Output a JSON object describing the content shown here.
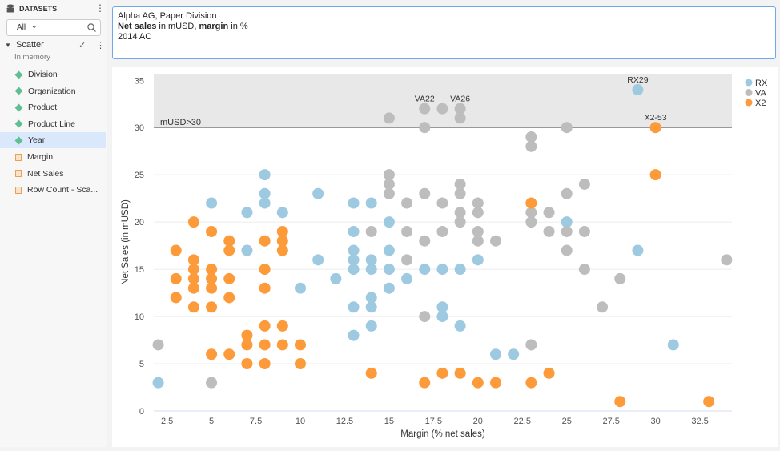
{
  "sidebar": {
    "title": "DATASETS",
    "filter_value": "All",
    "dataset": {
      "name": "Scatter",
      "subtitle": "In memory"
    },
    "fields": [
      {
        "label": "Division",
        "kind": "dimension"
      },
      {
        "label": "Organization",
        "kind": "dimension"
      },
      {
        "label": "Product",
        "kind": "dimension"
      },
      {
        "label": "Product Line",
        "kind": "dimension"
      },
      {
        "label": "Year",
        "kind": "dimension",
        "selected": true
      },
      {
        "label": "Margin",
        "kind": "measure"
      },
      {
        "label": "Net Sales",
        "kind": "measure"
      },
      {
        "label": "Row Count - Sca...",
        "kind": "measure"
      }
    ]
  },
  "header": {
    "line1": "Alpha AG, Paper Division",
    "line2_bold1": "Net sales",
    "line2_text1": " in mUSD, ",
    "line2_bold2": "margin",
    "line2_text2": " in %",
    "line3": "2014 AC"
  },
  "chart_data": {
    "type": "scatter",
    "xlabel": "Margin (% net sales)",
    "ylabel": "Net Sales (in mUSD)",
    "xlim": [
      1.75,
      34.3
    ],
    "ylim": [
      0,
      35.7
    ],
    "xticks": [
      "2.5",
      "5",
      "7.5",
      "10",
      "12.5",
      "15",
      "17.5",
      "20",
      "22.5",
      "25",
      "27.5",
      "30",
      "32.5"
    ],
    "yticks": [
      "0",
      "5",
      "10",
      "15",
      "20",
      "25",
      "30",
      "35"
    ],
    "grid": true,
    "legend_position": "top-right",
    "band": {
      "from": 30,
      "label": "mUSD>30"
    },
    "series": [
      {
        "name": "RX",
        "color": "#9ecae1",
        "points": [
          [
            2,
            3
          ],
          [
            5,
            22
          ],
          [
            7,
            21
          ],
          [
            7,
            17
          ],
          [
            8,
            25
          ],
          [
            8,
            23
          ],
          [
            8,
            22
          ],
          [
            9,
            21
          ],
          [
            10,
            13
          ],
          [
            11,
            23
          ],
          [
            11,
            16
          ],
          [
            12,
            14
          ],
          [
            13,
            22
          ],
          [
            13,
            19
          ],
          [
            13,
            17
          ],
          [
            13,
            16
          ],
          [
            13,
            15
          ],
          [
            13,
            11
          ],
          [
            13,
            8
          ],
          [
            14,
            22
          ],
          [
            14,
            16
          ],
          [
            14,
            15
          ],
          [
            14,
            12
          ],
          [
            14,
            11
          ],
          [
            14,
            9
          ],
          [
            15,
            20
          ],
          [
            15,
            17
          ],
          [
            15,
            15
          ],
          [
            15,
            13
          ],
          [
            16,
            14
          ],
          [
            17,
            15
          ],
          [
            18,
            15
          ],
          [
            18,
            11
          ],
          [
            18,
            10
          ],
          [
            19,
            15
          ],
          [
            19,
            9
          ],
          [
            20,
            16
          ],
          [
            21,
            6
          ],
          [
            22,
            6
          ],
          [
            25,
            20
          ],
          [
            29,
            34
          ],
          [
            29,
            17
          ],
          [
            31,
            7
          ]
        ]
      },
      {
        "name": "VA",
        "color": "#bdbdbd",
        "points": [
          [
            2,
            7
          ],
          [
            5,
            3
          ],
          [
            14,
            19
          ],
          [
            15,
            31
          ],
          [
            15,
            25
          ],
          [
            15,
            24
          ],
          [
            15,
            23
          ],
          [
            16,
            22
          ],
          [
            16,
            19
          ],
          [
            16,
            16
          ],
          [
            17,
            32
          ],
          [
            17,
            30
          ],
          [
            17,
            23
          ],
          [
            17,
            18
          ],
          [
            17,
            10
          ],
          [
            18,
            32
          ],
          [
            18,
            22
          ],
          [
            18,
            19
          ],
          [
            19,
            32
          ],
          [
            19,
            31
          ],
          [
            19,
            24
          ],
          [
            19,
            23
          ],
          [
            19,
            21
          ],
          [
            19,
            20
          ],
          [
            20,
            22
          ],
          [
            20,
            21
          ],
          [
            20,
            19
          ],
          [
            20,
            18
          ],
          [
            21,
            18
          ],
          [
            23,
            29
          ],
          [
            23,
            28
          ],
          [
            23,
            21
          ],
          [
            23,
            20
          ],
          [
            23,
            7
          ],
          [
            24,
            21
          ],
          [
            24,
            19
          ],
          [
            25,
            30
          ],
          [
            25,
            23
          ],
          [
            25,
            19
          ],
          [
            25,
            17
          ],
          [
            26,
            24
          ],
          [
            26,
            19
          ],
          [
            26,
            15
          ],
          [
            27,
            11
          ],
          [
            28,
            14
          ],
          [
            34,
            16
          ]
        ]
      },
      {
        "name": "X2",
        "color": "#fd9a3a",
        "points": [
          [
            3,
            17
          ],
          [
            3,
            14
          ],
          [
            3,
            12
          ],
          [
            4,
            20
          ],
          [
            4,
            16
          ],
          [
            4,
            15
          ],
          [
            4,
            14
          ],
          [
            4,
            13
          ],
          [
            4,
            11
          ],
          [
            5,
            19
          ],
          [
            5,
            15
          ],
          [
            5,
            14
          ],
          [
            5,
            13
          ],
          [
            5,
            11
          ],
          [
            5,
            6
          ],
          [
            6,
            18
          ],
          [
            6,
            17
          ],
          [
            6,
            14
          ],
          [
            6,
            12
          ],
          [
            6,
            6
          ],
          [
            7,
            8
          ],
          [
            7,
            7
          ],
          [
            7,
            5
          ],
          [
            8,
            18
          ],
          [
            8,
            15
          ],
          [
            8,
            13
          ],
          [
            8,
            9
          ],
          [
            8,
            7
          ],
          [
            8,
            5
          ],
          [
            9,
            19
          ],
          [
            9,
            18
          ],
          [
            9,
            17
          ],
          [
            9,
            9
          ],
          [
            9,
            7
          ],
          [
            10,
            7
          ],
          [
            10,
            5
          ],
          [
            14,
            4
          ],
          [
            17,
            3
          ],
          [
            18,
            4
          ],
          [
            19,
            4
          ],
          [
            20,
            3
          ],
          [
            21,
            3
          ],
          [
            23,
            22
          ],
          [
            23,
            3
          ],
          [
            24,
            4
          ],
          [
            28,
            1
          ],
          [
            30,
            30
          ],
          [
            30,
            25
          ],
          [
            33,
            1
          ]
        ]
      }
    ],
    "annotations": [
      {
        "text": "VA22",
        "x": 17,
        "y": 32
      },
      {
        "text": "VA26",
        "x": 19,
        "y": 32
      },
      {
        "text": "RX29",
        "x": 29,
        "y": 34
      },
      {
        "text": "X2-53",
        "x": 30,
        "y": 30
      }
    ]
  }
}
